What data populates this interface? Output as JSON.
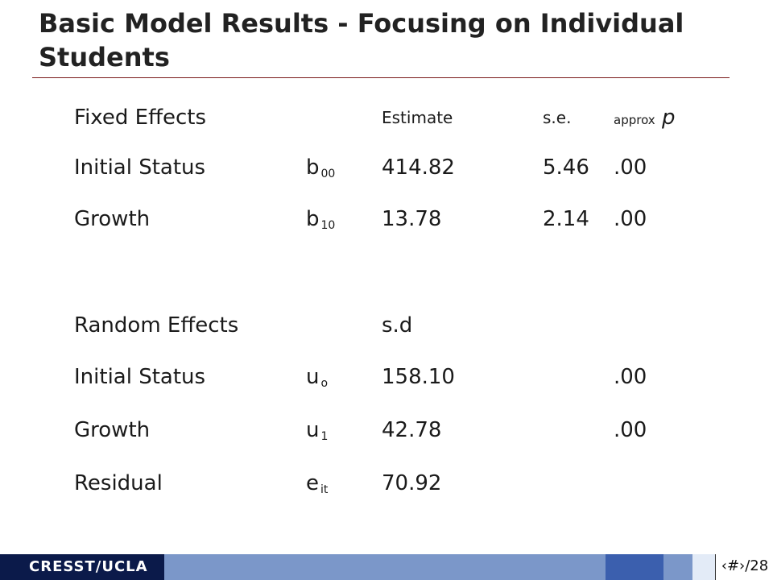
{
  "slide": {
    "title": "Basic Model Results - Focusing on Individual Students"
  },
  "header_row": {
    "label": "Fixed Effects",
    "estimate": "Estimate",
    "se": "s.e.",
    "approx": "approx",
    "p": "p"
  },
  "fixed_effects": [
    {
      "label": "Initial Status",
      "sym": "b",
      "sub": "00",
      "estimate": "414.82",
      "se": "5.46",
      "p": ".00"
    },
    {
      "label": "Growth",
      "sym": "b",
      "sub": "10",
      "estimate": "13.78",
      "se": "2.14",
      "p": ".00"
    }
  ],
  "random_header": {
    "label": "Random Effects",
    "sd": "s.d"
  },
  "random_effects": [
    {
      "label": "Initial Status",
      "sym": "u",
      "sub": "o",
      "estimate": "158.10",
      "p": ".00"
    },
    {
      "label": "Growth",
      "sym": "u",
      "sub": "1",
      "estimate": "42.78",
      "p": ".00"
    },
    {
      "label": "Residual",
      "sym": "e",
      "sub": "it",
      "estimate": "70.92",
      "p": ""
    }
  ],
  "footer": {
    "brand": "CRESST/UCLA",
    "page": "‹#›/28"
  }
}
